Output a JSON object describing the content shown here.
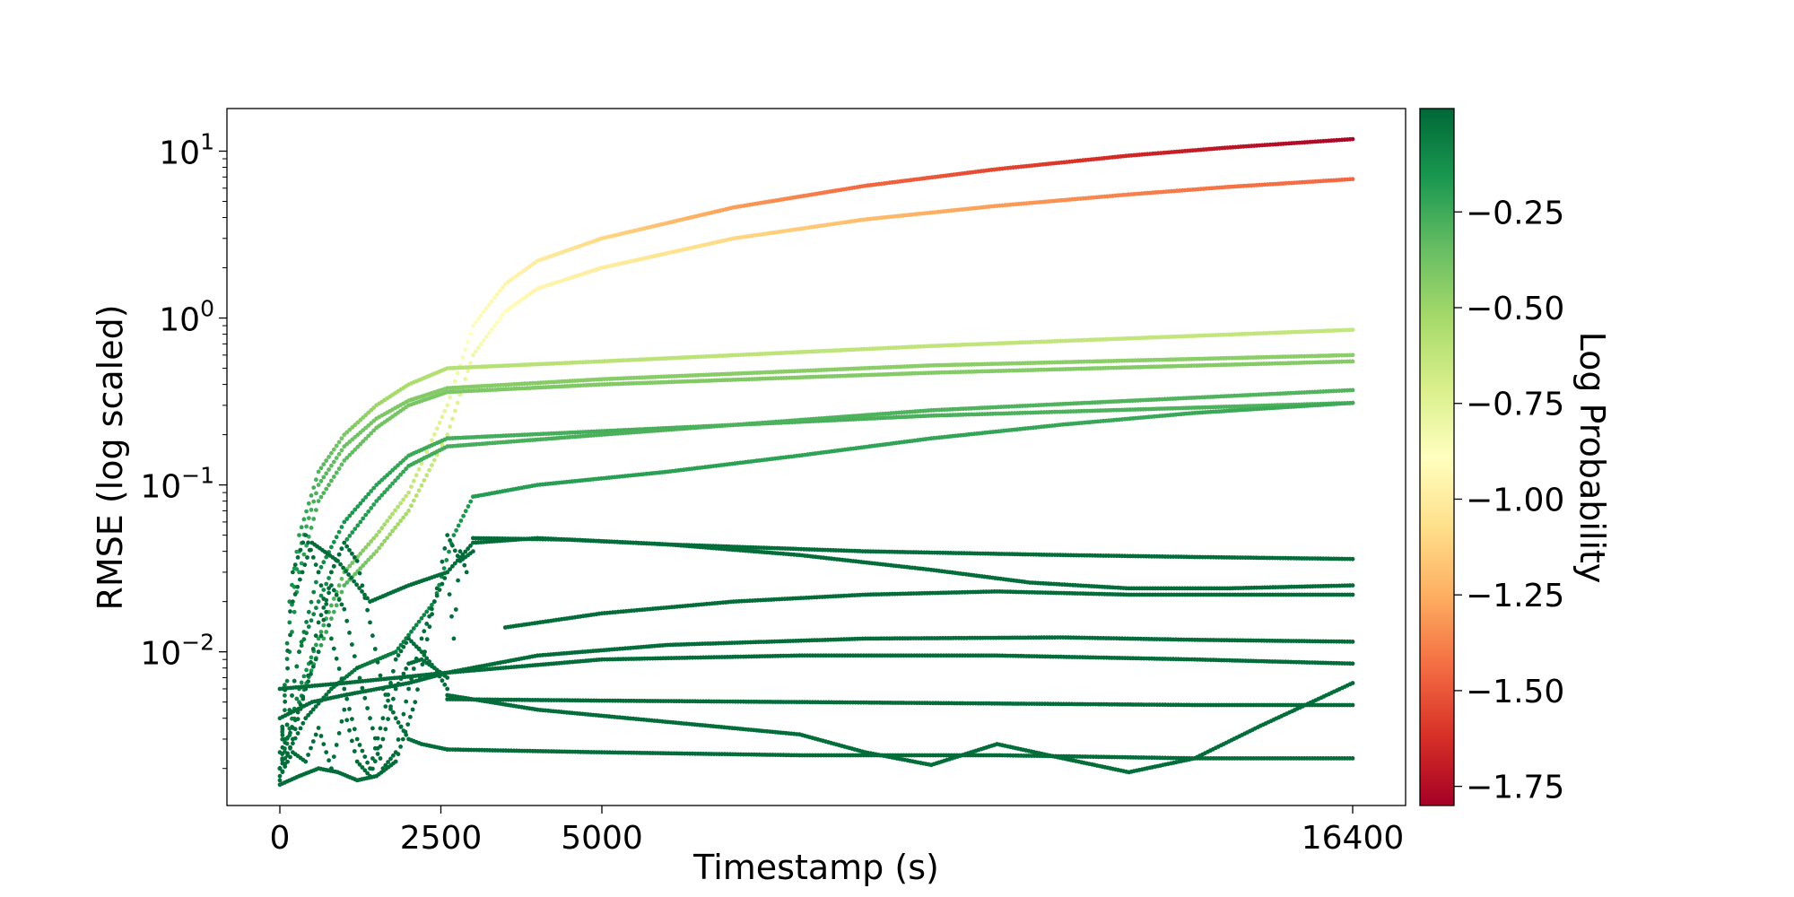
{
  "chart_data": {
    "type": "scatter",
    "xlabel": "Timestamp (s)",
    "ylabel": "RMSE (log scaled)",
    "y_scale": "log",
    "x_scale": "piecewise (compressed beyond 5000)",
    "xlim": [
      -800,
      17200
    ],
    "ylim": [
      0.0012,
      18
    ],
    "x_ticks": [
      0,
      2500,
      5000,
      16400
    ],
    "x_tick_labels": [
      "0",
      "2500",
      "5000",
      "16400"
    ],
    "y_ticks": [
      0.01,
      0.1,
      1,
      10
    ],
    "y_tick_labels": [
      "10",
      "10",
      "10",
      "10"
    ],
    "y_tick_exponents": [
      "−2",
      "−1",
      "0",
      "1"
    ],
    "colorbar": {
      "label": "Log Probability",
      "colormap": "RdYlGn",
      "range": [
        -1.8,
        0.02
      ],
      "ticks": [
        -0.25,
        -0.5,
        -0.75,
        -1.0,
        -1.25,
        -1.5,
        -1.75
      ],
      "tick_labels": [
        "−0.25",
        "−0.50",
        "−0.75",
        "−1.00",
        "−1.25",
        "−1.50",
        "−1.75"
      ]
    },
    "grid": false,
    "series": [
      {
        "x": [
          0,
          300,
          600,
          1000,
          1500,
          2000,
          2600,
          3000,
          3500,
          4000,
          5000,
          7000,
          9000,
          11000,
          13000,
          14500,
          16400
        ],
        "y": [
          0.002,
          0.006,
          0.012,
          0.03,
          0.05,
          0.09,
          0.3,
          0.9,
          1.6,
          2.2,
          3.0,
          4.6,
          6.2,
          7.8,
          9.4,
          10.5,
          11.8
        ],
        "log_prob": [
          0.0,
          -0.1,
          -0.2,
          -0.35,
          -0.5,
          -0.62,
          -0.78,
          -0.9,
          -0.95,
          -1.0,
          -1.1,
          -1.3,
          -1.45,
          -1.55,
          -1.65,
          -1.72,
          -1.78
        ]
      },
      {
        "x": [
          0,
          300,
          600,
          1000,
          1500,
          2000,
          2600,
          3000,
          3500,
          4000,
          5000,
          7000,
          9000,
          11000,
          13000,
          14500,
          16400
        ],
        "y": [
          0.002,
          0.005,
          0.01,
          0.025,
          0.04,
          0.07,
          0.2,
          0.6,
          1.1,
          1.5,
          2.0,
          3.0,
          3.9,
          4.7,
          5.5,
          6.1,
          6.8
        ],
        "log_prob": [
          0.0,
          -0.1,
          -0.2,
          -0.3,
          -0.45,
          -0.55,
          -0.7,
          -0.82,
          -0.9,
          -0.95,
          -1.0,
          -1.1,
          -1.2,
          -1.3,
          -1.38,
          -1.42,
          -1.45
        ]
      },
      {
        "x": [
          0,
          150,
          300,
          600,
          1000,
          1500,
          2000,
          2600,
          5000,
          10000,
          16400
        ],
        "y": [
          0.002,
          0.02,
          0.05,
          0.12,
          0.2,
          0.3,
          0.4,
          0.5,
          0.55,
          0.68,
          0.85
        ],
        "log_prob": [
          0.0,
          -0.1,
          -0.2,
          -0.3,
          -0.4,
          -0.5,
          -0.55,
          -0.58,
          -0.6,
          -0.62,
          -0.63
        ]
      },
      {
        "x": [
          0,
          150,
          300,
          600,
          1000,
          1500,
          2000,
          2600,
          5000,
          10000,
          16400
        ],
        "y": [
          0.002,
          0.015,
          0.04,
          0.1,
          0.17,
          0.25,
          0.32,
          0.38,
          0.43,
          0.52,
          0.6
        ],
        "log_prob": [
          -0.02,
          -0.1,
          -0.2,
          -0.3,
          -0.36,
          -0.4,
          -0.42,
          -0.43,
          -0.44,
          -0.45,
          -0.45
        ]
      },
      {
        "x": [
          0,
          150,
          300,
          600,
          1000,
          1500,
          2000,
          2600,
          5000,
          10000,
          16400
        ],
        "y": [
          0.002,
          0.01,
          0.03,
          0.08,
          0.14,
          0.22,
          0.3,
          0.36,
          0.4,
          0.47,
          0.55
        ],
        "log_prob": [
          -0.02,
          -0.1,
          -0.18,
          -0.28,
          -0.33,
          -0.37,
          -0.4,
          -0.41,
          -0.42,
          -0.43,
          -0.43
        ]
      },
      {
        "x": [
          0,
          300,
          600,
          1000,
          1500,
          2000,
          2600,
          5000,
          10000,
          16400
        ],
        "y": [
          0.002,
          0.01,
          0.03,
          0.06,
          0.1,
          0.15,
          0.19,
          0.21,
          0.26,
          0.31
        ],
        "log_prob": [
          0.0,
          -0.05,
          -0.1,
          -0.15,
          -0.2,
          -0.24,
          -0.26,
          -0.27,
          -0.28,
          -0.29
        ]
      },
      {
        "x": [
          0,
          300,
          600,
          1000,
          1500,
          2000,
          2600,
          5000,
          10000,
          16400
        ],
        "y": [
          0.002,
          0.01,
          0.02,
          0.045,
          0.08,
          0.13,
          0.17,
          0.2,
          0.28,
          0.37
        ],
        "log_prob": [
          0.0,
          -0.05,
          -0.1,
          -0.15,
          -0.2,
          -0.24,
          -0.27,
          -0.28,
          -0.29,
          -0.3
        ]
      },
      {
        "x": [
          0,
          400,
          800,
          1200,
          1800,
          2400,
          2700,
          3000,
          4000,
          6000,
          8000,
          10000,
          12000,
          14000,
          16400
        ],
        "y": [
          0.002,
          0.004,
          0.006,
          0.008,
          0.01,
          0.02,
          0.05,
          0.085,
          0.1,
          0.12,
          0.15,
          0.19,
          0.23,
          0.27,
          0.31
        ],
        "log_prob": [
          0.0,
          0.0,
          -0.02,
          -0.04,
          -0.06,
          -0.1,
          -0.14,
          -0.18,
          -0.19,
          -0.2,
          -0.21,
          -0.22,
          -0.23,
          -0.24,
          -0.25
        ]
      },
      {
        "x": [
          0,
          200,
          500,
          900,
          1400,
          2000,
          2600,
          3000,
          4000,
          6000,
          9000,
          12000,
          14000,
          16400
        ],
        "y": [
          0.002,
          0.02,
          0.045,
          0.035,
          0.02,
          0.025,
          0.03,
          0.045,
          0.048,
          0.044,
          0.04,
          0.038,
          0.037,
          0.036
        ],
        "log_prob": [
          0.0,
          0.0,
          0.0,
          0.0,
          0.0,
          0.0,
          0.0,
          0.0,
          0.0,
          0.0,
          0.0,
          0.0,
          0.0,
          0.0
        ]
      },
      {
        "x": [
          3000,
          4500,
          6000,
          8000,
          10000,
          11500,
          13000,
          14500,
          16400
        ],
        "y": [
          0.048,
          0.047,
          0.044,
          0.038,
          0.031,
          0.026,
          0.024,
          0.024,
          0.025
        ],
        "log_prob": [
          0.0,
          0.0,
          0.0,
          0.0,
          0.0,
          0.0,
          0.0,
          0.0,
          0.0
        ]
      },
      {
        "x": [
          3500,
          5000,
          7000,
          9000,
          11000,
          13000,
          16400
        ],
        "y": [
          0.014,
          0.017,
          0.02,
          0.022,
          0.023,
          0.022,
          0.022
        ],
        "log_prob": [
          0.0,
          0.0,
          0.0,
          0.0,
          0.0,
          0.0,
          0.0
        ]
      },
      {
        "x": [
          0,
          500,
          1000,
          2000,
          2600,
          4000,
          6000,
          9000,
          12000,
          14000,
          16400
        ],
        "y": [
          0.004,
          0.005,
          0.0055,
          0.0065,
          0.0075,
          0.0095,
          0.011,
          0.012,
          0.0122,
          0.0118,
          0.0115
        ],
        "log_prob": [
          0.0,
          0.0,
          0.0,
          0.0,
          0.0,
          0.0,
          0.0,
          0.0,
          0.0,
          0.0,
          0.0
        ]
      },
      {
        "x": [
          0,
          1000,
          2600,
          5000,
          8000,
          11000,
          14000,
          16400
        ],
        "y": [
          0.006,
          0.0065,
          0.0075,
          0.009,
          0.0095,
          0.0095,
          0.009,
          0.0085
        ],
        "log_prob": [
          0.0,
          0.0,
          0.0,
          0.0,
          0.0,
          0.0,
          0.0,
          0.0
        ]
      },
      {
        "x": [
          2600,
          4000,
          6000,
          8000,
          9000,
          10000,
          11000,
          12000,
          13000,
          14000,
          15000,
          16400
        ],
        "y": [
          0.0055,
          0.0045,
          0.0038,
          0.0032,
          0.0025,
          0.0021,
          0.0028,
          0.0023,
          0.0019,
          0.0023,
          0.0036,
          0.0065
        ],
        "log_prob": [
          0.0,
          0.0,
          0.0,
          0.0,
          0.0,
          0.0,
          0.0,
          0.0,
          0.0,
          0.0,
          0.0,
          0.0
        ]
      },
      {
        "x": [
          2600,
          5000,
          8000,
          11000,
          14000,
          16400
        ],
        "y": [
          0.0026,
          0.0025,
          0.0024,
          0.0024,
          0.0023,
          0.0023
        ],
        "log_prob": [
          0.0,
          0.0,
          0.0,
          0.0,
          0.0,
          0.0
        ]
      },
      {
        "x": [
          2600,
          5000,
          8000,
          11000,
          14000,
          16400
        ],
        "y": [
          0.0052,
          0.0051,
          0.005,
          0.0049,
          0.0048,
          0.0048
        ],
        "log_prob": [
          0.0,
          0.0,
          0.0,
          0.0,
          0.0,
          0.0
        ]
      },
      {
        "x": [
          0,
          200,
          400,
          600,
          800,
          1000,
          1200,
          1400,
          1600,
          1800,
          2000,
          2200,
          2400,
          2600
        ],
        "y": [
          0.0018,
          0.0025,
          0.0022,
          0.0035,
          0.002,
          0.0045,
          0.0022,
          0.0018,
          0.003,
          0.006,
          0.0085,
          0.009,
          0.008,
          0.006
        ],
        "log_prob": [
          0.0,
          0.0,
          0.0,
          0.0,
          0.0,
          0.0,
          0.0,
          0.0,
          0.0,
          0.0,
          0.0,
          0.0,
          0.0,
          0.0
        ]
      },
      {
        "x": [
          0,
          200,
          400,
          600,
          800,
          1000,
          1200,
          1400,
          1600,
          1800,
          2000,
          2200,
          2400,
          2600
        ],
        "y": [
          0.002,
          0.03,
          0.05,
          0.03,
          0.012,
          0.006,
          0.003,
          0.002,
          0.004,
          0.009,
          0.012,
          0.01,
          0.008,
          0.007
        ],
        "log_prob": [
          0.0,
          0.0,
          0.0,
          0.0,
          0.0,
          0.0,
          0.0,
          0.0,
          0.0,
          0.0,
          0.0,
          0.0,
          0.0,
          0.0
        ]
      },
      {
        "x": [
          0,
          200,
          400,
          600,
          800,
          1000,
          1200,
          1400,
          1600,
          1800,
          2000,
          2200,
          2400,
          2600
        ],
        "y": [
          0.0025,
          0.0035,
          0.006,
          0.01,
          0.03,
          0.045,
          0.035,
          0.015,
          0.006,
          0.004,
          0.003,
          0.0028,
          0.0027,
          0.0026
        ],
        "log_prob": [
          0.0,
          0.0,
          0.0,
          0.0,
          0.0,
          0.0,
          0.0,
          0.0,
          0.0,
          0.0,
          0.0,
          0.0,
          0.0,
          0.0
        ]
      },
      {
        "x": [
          0,
          300,
          600,
          900,
          1200,
          1500,
          1800,
          2100,
          2400,
          2600,
          2800,
          3000
        ],
        "y": [
          0.0016,
          0.0018,
          0.002,
          0.0019,
          0.0017,
          0.0018,
          0.0022,
          0.005,
          0.02,
          0.05,
          0.035,
          0.04
        ],
        "log_prob": [
          0.0,
          0.0,
          0.0,
          0.0,
          0.0,
          0.0,
          0.0,
          0.0,
          0.0,
          0.0,
          0.0,
          0.0
        ]
      },
      {
        "x": [
          0,
          200,
          400,
          600,
          800,
          1000,
          1200,
          1400,
          1600,
          1800,
          2000,
          2200,
          2400,
          2600,
          2700,
          2800,
          2900
        ],
        "y": [
          0.0017,
          0.003,
          0.006,
          0.015,
          0.025,
          0.018,
          0.008,
          0.004,
          0.002,
          0.0025,
          0.006,
          0.012,
          0.02,
          0.03,
          0.012,
          0.04,
          0.03
        ],
        "log_prob": [
          0.0,
          0.0,
          0.0,
          0.0,
          0.0,
          0.0,
          0.0,
          0.0,
          0.0,
          0.0,
          0.0,
          0.0,
          0.0,
          0.0,
          0.0,
          0.0,
          0.0
        ]
      }
    ]
  }
}
